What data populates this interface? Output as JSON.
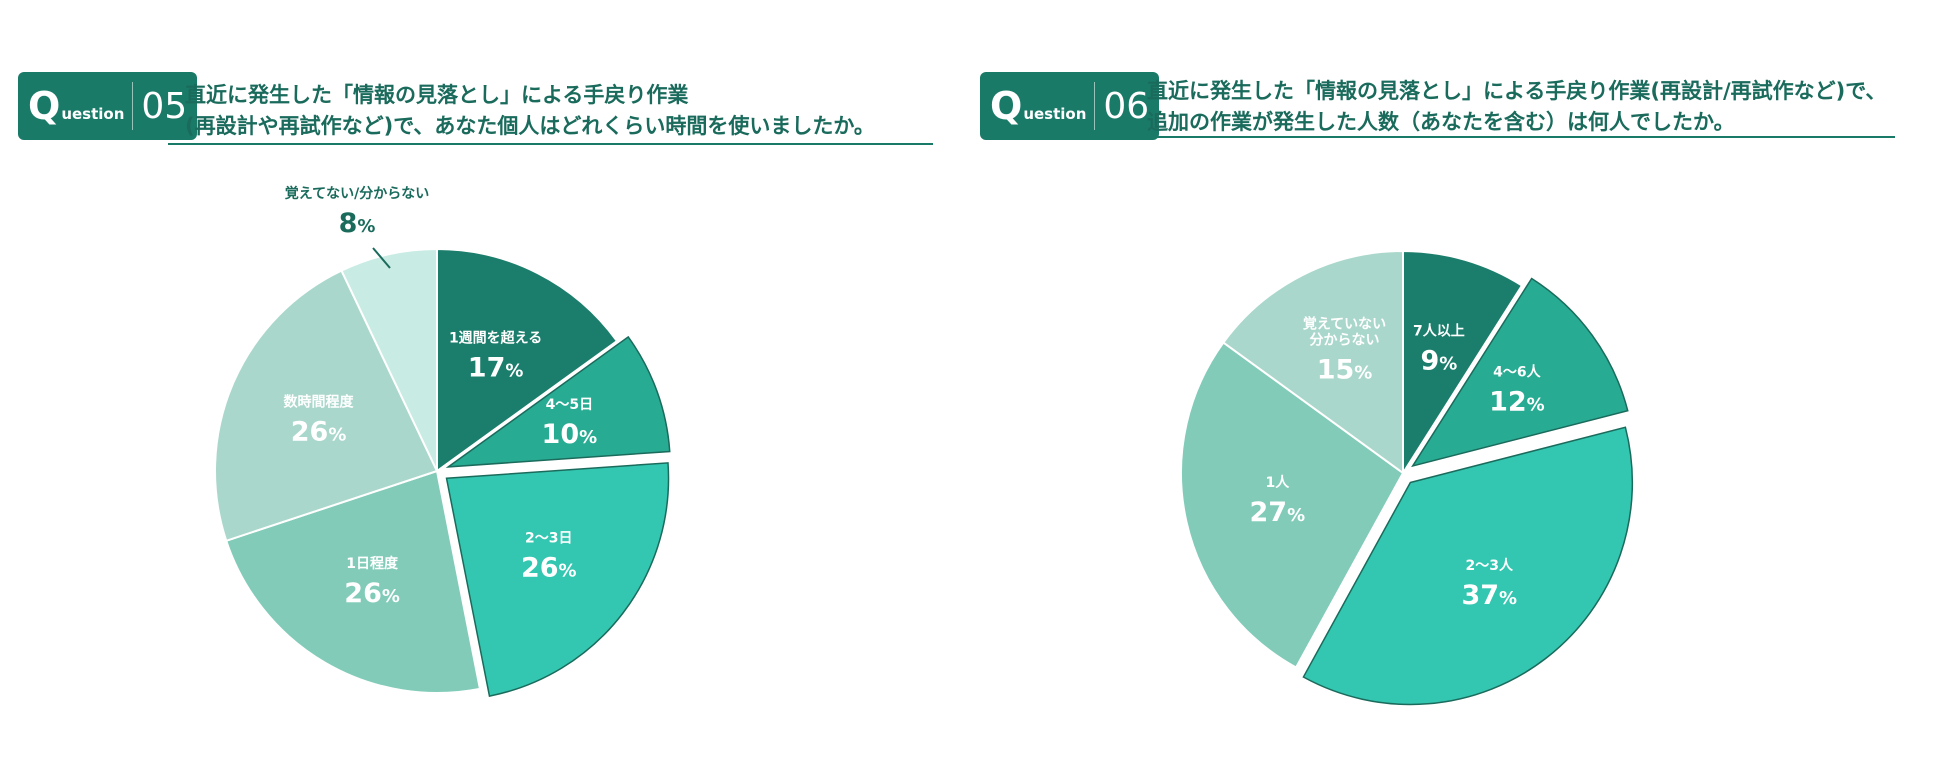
{
  "questions": [
    {
      "badge_q": "Q",
      "badge_uestion": "uestion",
      "number": "05",
      "line1": "直近に発生した「情報の見落とし」による手戻り作業",
      "line2": "(再設計や再試作など)で、あなた個人はどれくらい時間を使いましたか。"
    },
    {
      "badge_q": "Q",
      "badge_uestion": "uestion",
      "number": "06",
      "line1": "直近に発生した「情報の見落とし」による手戻り作業(再設計/再試作など)で、",
      "line2": "追加の作業が発生した人数（あなたを含む）は何人でしたか。"
    }
  ],
  "chart_data": [
    {
      "type": "pie",
      "unit": "%",
      "slices": [
        {
          "label": "1週間を超える",
          "value": 17,
          "color": "#1b7d6b",
          "explode": false
        },
        {
          "label": "4〜5日",
          "value": 10,
          "color": "#28ab93",
          "explode": true
        },
        {
          "label": "2〜3日",
          "value": 26,
          "color": "#33c6b0",
          "explode": true
        },
        {
          "label": "1日程度",
          "value": 26,
          "color": "#81cbb8",
          "explode": false
        },
        {
          "label": "数時間程度",
          "value": 26,
          "color": "#aad7cb",
          "explode": false
        },
        {
          "label": "覚えてない/分からない",
          "value": 8,
          "color": "#c8ebe3",
          "explode": false,
          "label_outside": true
        }
      ]
    },
    {
      "type": "pie",
      "unit": "%",
      "slices": [
        {
          "label": "7人以上",
          "value": 9,
          "color": "#1b7d6b",
          "explode": false
        },
        {
          "label": "4〜6人",
          "value": 12,
          "color": "#28ab93",
          "explode": true
        },
        {
          "label": "2〜3人",
          "value": 37,
          "color": "#33c6b0",
          "explode": true
        },
        {
          "label": "1人",
          "value": 27,
          "color": "#81cbb8",
          "explode": false
        },
        {
          "label": "覚えていない\n分からない",
          "value": 15,
          "color": "#aad7cb",
          "explode": false
        }
      ]
    }
  ]
}
